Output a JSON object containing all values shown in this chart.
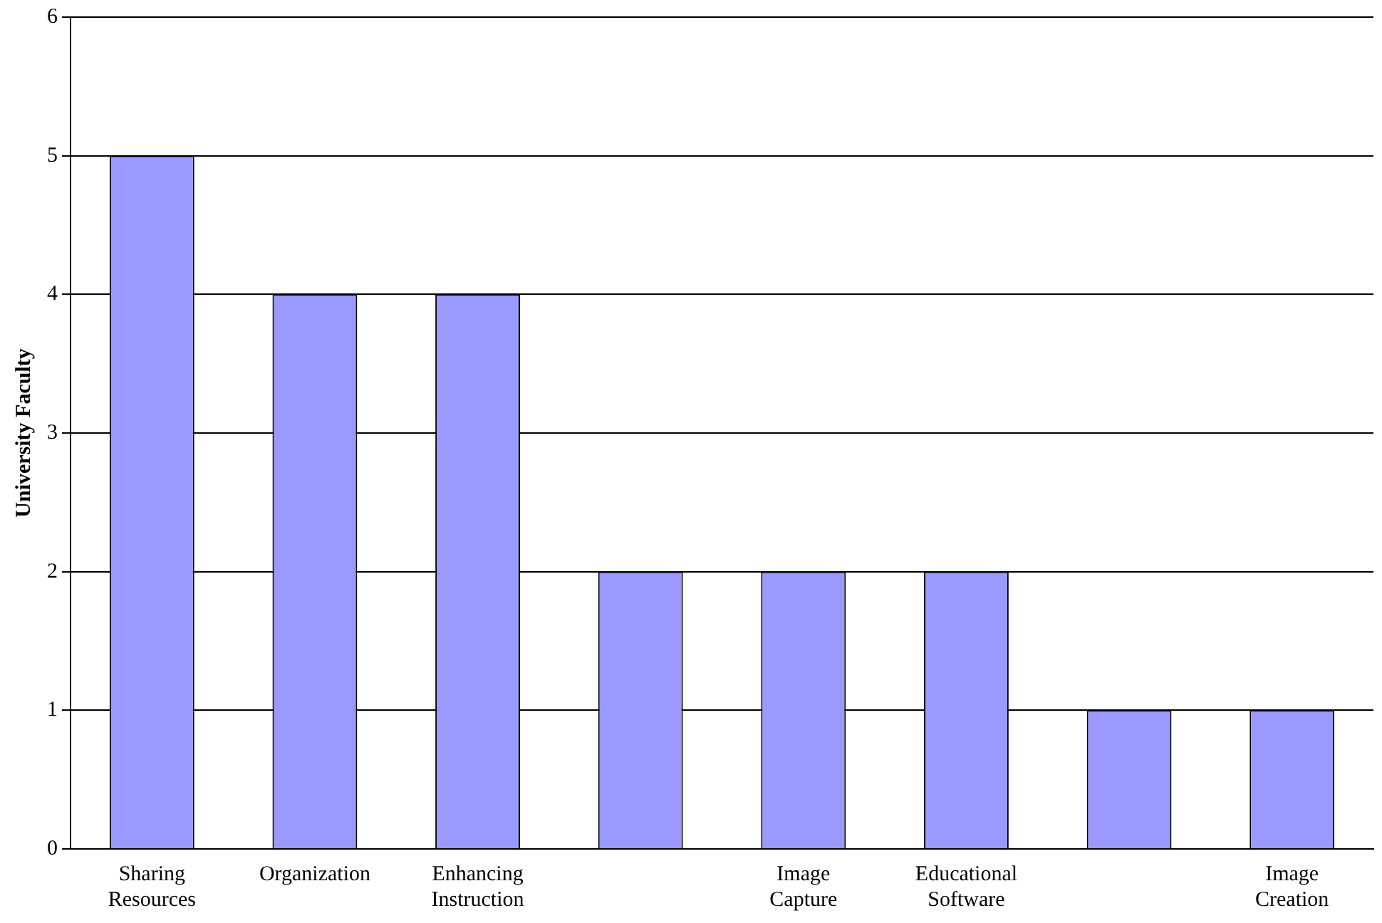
{
  "chart_data": {
    "type": "bar",
    "ylabel": "University Faculty",
    "categories": [
      "Sharing Resources",
      "Organization",
      "Enhancing Instruction",
      null,
      "Image Capture",
      "Educational Software",
      null,
      "Image Creation"
    ],
    "values": [
      5,
      4,
      4,
      2,
      2,
      2,
      1,
      1
    ],
    "color": "#9999ff",
    "ylim": [
      0,
      6
    ],
    "yticks": [
      0,
      1,
      2,
      3,
      4,
      5,
      6
    ],
    "grid": "y",
    "legend": false
  }
}
